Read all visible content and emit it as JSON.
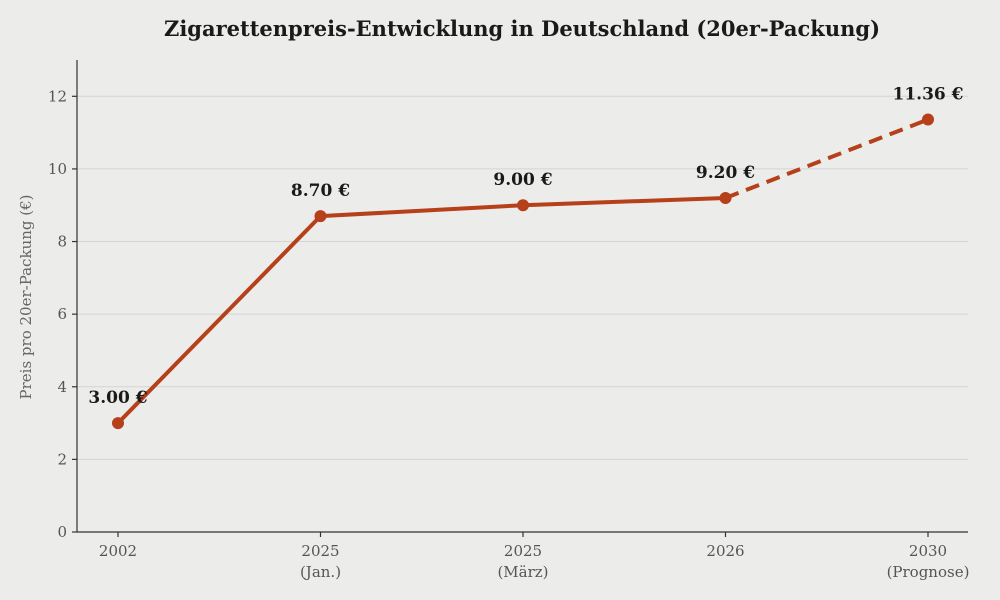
{
  "chart_data": {
    "type": "line",
    "title": "Zigarettenpreis-Entwicklung in Deutschland (20er-Packung)",
    "ylabel": "Preis pro 20er-Packung (€)",
    "xlabel": "",
    "ylim": [
      0,
      13
    ],
    "yticks": [
      0,
      2,
      4,
      6,
      8,
      10,
      12
    ],
    "grid": "horizontal",
    "categories": [
      [
        "2002",
        ""
      ],
      [
        "2025",
        "(Jan.)"
      ],
      [
        "2025",
        "(März)"
      ],
      [
        "2026",
        ""
      ],
      [
        "2030",
        "(Prognose)"
      ]
    ],
    "series": [
      {
        "values": [
          3.0,
          8.7,
          9.0,
          9.2,
          11.36
        ],
        "labels": [
          "3.00 €",
          "8.70 €",
          "9.00 €",
          "9.20 €",
          "11.36 €"
        ],
        "color": "#b5401a",
        "dashed_from_index": 3
      }
    ]
  }
}
